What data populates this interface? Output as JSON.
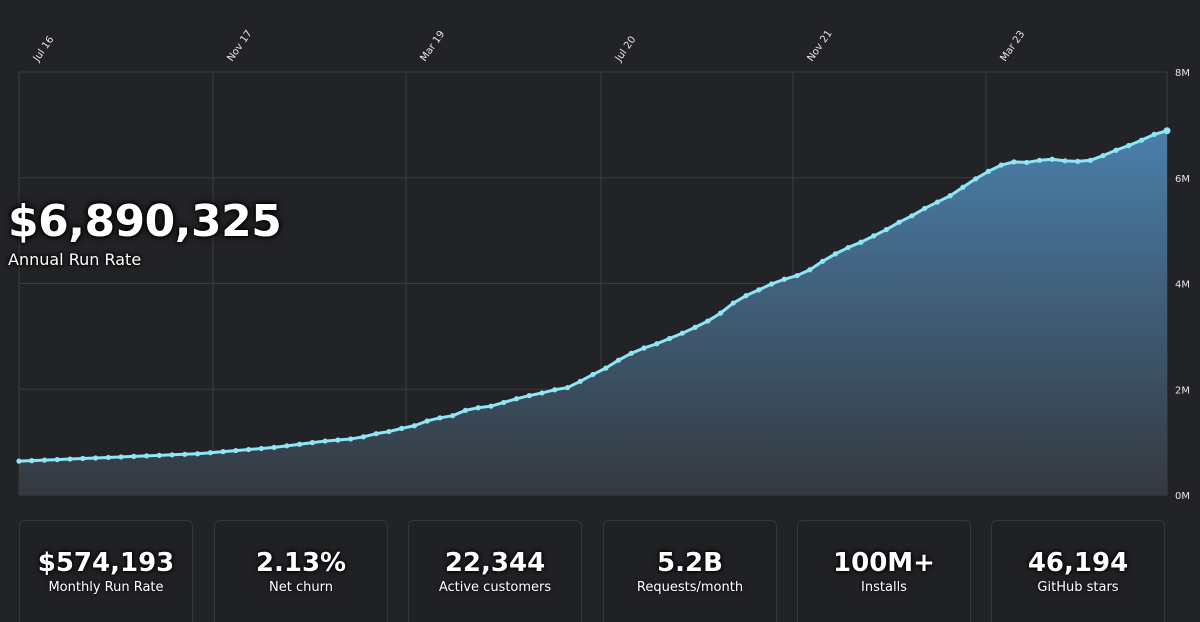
{
  "headline": {
    "value": "$6,890,325",
    "label": "Annual Run Rate"
  },
  "stats": [
    {
      "value": "$574,193",
      "label": "Monthly Run Rate"
    },
    {
      "value": "2.13%",
      "label": "Net churn"
    },
    {
      "value": "22,344",
      "label": "Active customers"
    },
    {
      "value": "5.2B",
      "label": "Requests/month"
    },
    {
      "value": "100M+",
      "label": "Installs"
    },
    {
      "value": "46,194",
      "label": "GitHub stars"
    }
  ],
  "colors": {
    "background": "#222326",
    "line": "#8ee6f6",
    "area_top": "#4a7fab",
    "area_bottom": "#34393f",
    "grid": "#3a3c40"
  },
  "chart_data": {
    "type": "area",
    "title": "",
    "xlabel": "",
    "ylabel": "",
    "x_tick_labels": [
      "Jul 16",
      "Nov 17",
      "Mar 19",
      "Jul 20",
      "Nov 21",
      "Mar 23"
    ],
    "y_tick_labels": [
      "0M",
      "2M",
      "4M",
      "6M",
      "8M"
    ],
    "ylim": [
      0,
      8
    ],
    "y_unit": "M",
    "grid": true,
    "series": [
      {
        "values": [
          0.64,
          0.65,
          0.66,
          0.67,
          0.68,
          0.69,
          0.7,
          0.71,
          0.72,
          0.73,
          0.74,
          0.75,
          0.76,
          0.77,
          0.78,
          0.8,
          0.82,
          0.84,
          0.86,
          0.88,
          0.9,
          0.93,
          0.96,
          0.99,
          1.02,
          1.04,
          1.06,
          1.1,
          1.16,
          1.2,
          1.26,
          1.31,
          1.4,
          1.46,
          1.5,
          1.6,
          1.65,
          1.68,
          1.75,
          1.82,
          1.88,
          1.93,
          1.99,
          2.03,
          2.15,
          2.28,
          2.4,
          2.55,
          2.68,
          2.78,
          2.86,
          2.96,
          3.06,
          3.17,
          3.29,
          3.44,
          3.63,
          3.77,
          3.88,
          3.99,
          4.08,
          4.15,
          4.26,
          4.42,
          4.56,
          4.68,
          4.78,
          4.9,
          5.02,
          5.16,
          5.28,
          5.42,
          5.54,
          5.66,
          5.82,
          5.98,
          6.12,
          6.24,
          6.3,
          6.29,
          6.33,
          6.35,
          6.32,
          6.31,
          6.33,
          6.42,
          6.52,
          6.61,
          6.71,
          6.82,
          6.89
        ]
      }
    ]
  }
}
